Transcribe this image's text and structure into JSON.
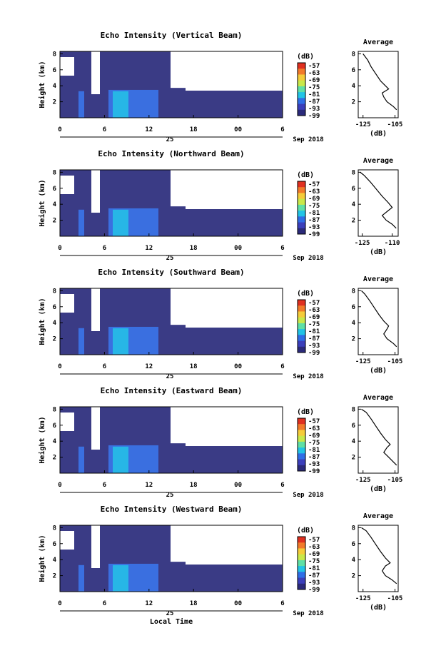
{
  "figure": {
    "x_axis_label": "Local Time",
    "date_label": "Sep 2018",
    "colorbar_unit": "(dB)",
    "colorbar_ticks": [
      "-57",
      "-63",
      "-69",
      "-75",
      "-81",
      "-87",
      "-93",
      "-99"
    ],
    "colorbar_colors": [
      "#e03020",
      "#f27a2a",
      "#f5cc3a",
      "#c9e84a",
      "#5fe0a6",
      "#22c4e6",
      "#2f6ee6",
      "#3b3fbb",
      "#2b2a7a"
    ]
  },
  "chart_data": [
    {
      "type": "heatmap",
      "title": "Echo Intensity (Vertical Beam)",
      "xlabel": "",
      "ylabel": "Height (km)",
      "x_ticks": [
        "0",
        "6",
        "12",
        "18",
        "00",
        "6"
      ],
      "x_date_tick": "25",
      "y_ticks": [
        "2",
        "4",
        "6",
        "8"
      ],
      "ylim": [
        0,
        8.3
      ],
      "average": {
        "title": "Average",
        "xlabel": "(dB)",
        "x_ticks": [
          "-125",
          "-105"
        ],
        "xlim": [
          -128,
          -103
        ],
        "y_ticks": [
          "2",
          "4",
          "6",
          "8"
        ],
        "profile": [
          [
            -104,
            1
          ],
          [
            -106,
            1.4
          ],
          [
            -110,
            2
          ],
          [
            -112,
            2.6
          ],
          [
            -113,
            3.1
          ],
          [
            -109,
            3.6
          ],
          [
            -111,
            4
          ],
          [
            -114,
            4.6
          ],
          [
            -117,
            5.5
          ],
          [
            -120,
            6.4
          ],
          [
            -122,
            7.2
          ],
          [
            -125,
            8
          ]
        ]
      }
    },
    {
      "type": "heatmap",
      "title": "Echo Intensity (Northward Beam)",
      "xlabel": "",
      "ylabel": "Height (km)",
      "x_ticks": [
        "0",
        "6",
        "12",
        "18",
        "00",
        "6"
      ],
      "x_date_tick": "25",
      "y_ticks": [
        "2",
        "4",
        "6",
        "8"
      ],
      "ylim": [
        0,
        8.3
      ],
      "average": {
        "title": "Average",
        "xlabel": "(dB)",
        "x_ticks": [
          "-125",
          "-110"
        ],
        "xlim": [
          -127,
          -107
        ],
        "y_ticks": [
          "2",
          "4",
          "6",
          "8"
        ],
        "profile": [
          [
            -108,
            1
          ],
          [
            -110,
            1.5
          ],
          [
            -113,
            2
          ],
          [
            -115,
            2.6
          ],
          [
            -112,
            3.2
          ],
          [
            -110,
            3.6
          ],
          [
            -112,
            4.2
          ],
          [
            -115,
            5
          ],
          [
            -118,
            5.9
          ],
          [
            -121,
            6.8
          ],
          [
            -124,
            7.6
          ],
          [
            -126,
            8
          ]
        ]
      }
    },
    {
      "type": "heatmap",
      "title": "Echo Intensity (Southward Beam)",
      "xlabel": "",
      "ylabel": "Height (km)",
      "x_ticks": [
        "0",
        "6",
        "12",
        "18",
        "00",
        "6"
      ],
      "x_date_tick": "25",
      "y_ticks": [
        "2",
        "4",
        "6",
        "8"
      ],
      "ylim": [
        0,
        8.3
      ],
      "average": {
        "title": "Average",
        "xlabel": "(dB)",
        "x_ticks": [
          "-125",
          "-105"
        ],
        "xlim": [
          -128,
          -103
        ],
        "y_ticks": [
          "2",
          "4",
          "6",
          "8"
        ],
        "profile": [
          [
            -104,
            1
          ],
          [
            -106,
            1.4
          ],
          [
            -110,
            2
          ],
          [
            -112,
            2.6
          ],
          [
            -110,
            3.2
          ],
          [
            -109,
            3.6
          ],
          [
            -112,
            4.2
          ],
          [
            -115,
            5
          ],
          [
            -118,
            5.9
          ],
          [
            -121,
            6.8
          ],
          [
            -124,
            7.6
          ],
          [
            -126,
            8
          ]
        ]
      }
    },
    {
      "type": "heatmap",
      "title": "Echo Intensity (Eastward Beam)",
      "xlabel": "",
      "ylabel": "Height (km)",
      "x_ticks": [
        "0",
        "6",
        "12",
        "18",
        "00",
        "6"
      ],
      "x_date_tick": "25",
      "y_ticks": [
        "2",
        "4",
        "6",
        "8"
      ],
      "ylim": [
        0,
        8.3
      ],
      "average": {
        "title": "Average",
        "xlabel": "(dB)",
        "x_ticks": [
          "-125",
          "-105"
        ],
        "xlim": [
          -128,
          -103
        ],
        "y_ticks": [
          "2",
          "4",
          "6",
          "8"
        ],
        "profile": [
          [
            -104,
            1
          ],
          [
            -106,
            1.4
          ],
          [
            -109,
            2
          ],
          [
            -112,
            2.6
          ],
          [
            -110,
            3.2
          ],
          [
            -108,
            3.6
          ],
          [
            -111,
            4.2
          ],
          [
            -114,
            5
          ],
          [
            -117,
            5.9
          ],
          [
            -120,
            6.8
          ],
          [
            -123,
            7.6
          ],
          [
            -126,
            8
          ]
        ]
      }
    },
    {
      "type": "heatmap",
      "title": "Echo Intensity (Westward Beam)",
      "xlabel": "Local Time",
      "ylabel": "Height (km)",
      "x_ticks": [
        "0",
        "6",
        "12",
        "18",
        "00",
        "6"
      ],
      "x_date_tick": "25",
      "y_ticks": [
        "2",
        "4",
        "6",
        "8"
      ],
      "ylim": [
        0,
        8.3
      ],
      "average": {
        "title": "Average",
        "xlabel": "(dB)",
        "x_ticks": [
          "-125",
          "-105"
        ],
        "xlim": [
          -128,
          -103
        ],
        "y_ticks": [
          "2",
          "4",
          "6",
          "8"
        ],
        "profile": [
          [
            -104,
            1
          ],
          [
            -107,
            1.5
          ],
          [
            -111,
            2
          ],
          [
            -113,
            2.6
          ],
          [
            -111,
            3.2
          ],
          [
            -108,
            3.6
          ],
          [
            -111,
            4.2
          ],
          [
            -114,
            5
          ],
          [
            -117,
            5.9
          ],
          [
            -120,
            6.8
          ],
          [
            -123,
            7.6
          ],
          [
            -126,
            8
          ]
        ]
      }
    }
  ]
}
